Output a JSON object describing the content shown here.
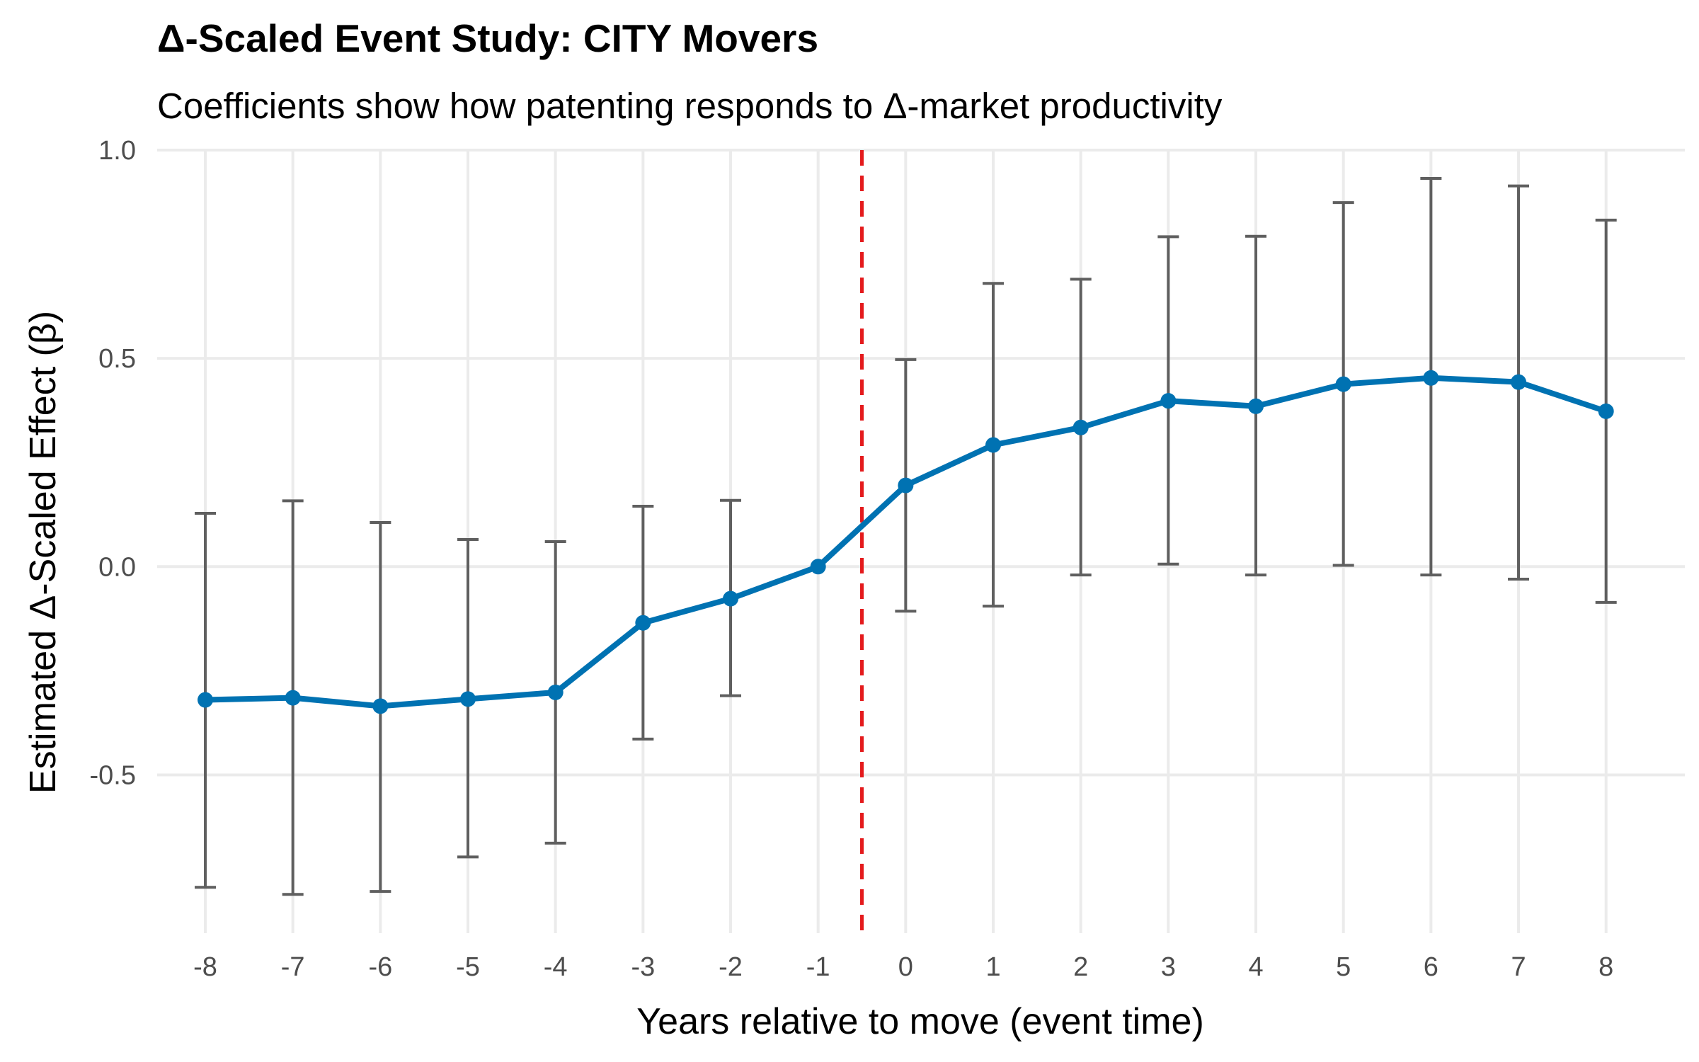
{
  "chart_data": {
    "type": "line",
    "title": "Δ-Scaled Event Study: CITY Movers",
    "subtitle": "Coefficients show how patenting responds to Δ-market productivity",
    "xlabel": "Years relative to move (event time)",
    "ylabel": "Estimated Δ-Scaled Effect (β)",
    "x": [
      -8,
      -7,
      -6,
      -5,
      -4,
      -3,
      -2,
      -1,
      0,
      1,
      2,
      3,
      4,
      5,
      6,
      7,
      8
    ],
    "x_tick_labels": [
      "-8",
      "-7",
      "-6",
      "-5",
      "-4",
      "-3",
      "-2",
      "-1",
      "0",
      "1",
      "2",
      "3",
      "4",
      "5",
      "6",
      "7",
      "8"
    ],
    "y_ticks": [
      -0.5,
      0.0,
      0.5,
      1.0
    ],
    "y_tick_labels": [
      "-0.5",
      "0.0",
      "0.5",
      "1.0"
    ],
    "xlim": [
      -8.55,
      8.9
    ],
    "ylim": [
      -0.88,
      1.0
    ],
    "series": [
      {
        "values": [
          -0.32,
          -0.315,
          -0.335,
          -0.318,
          -0.302,
          -0.135,
          -0.077,
          0.0,
          0.195,
          0.292,
          0.334,
          0.398,
          0.385,
          0.438,
          0.453,
          0.443,
          0.373
        ],
        "ci_lower": [
          -0.77,
          -0.787,
          -0.78,
          -0.697,
          -0.664,
          -0.414,
          -0.31,
          null,
          -0.107,
          -0.095,
          -0.02,
          0.006,
          -0.02,
          0.003,
          -0.02,
          -0.03,
          -0.086
        ],
        "ci_upper": [
          0.128,
          0.158,
          0.106,
          0.065,
          0.06,
          0.145,
          0.159,
          null,
          0.497,
          0.68,
          0.69,
          0.792,
          0.793,
          0.874,
          0.932,
          0.914,
          0.832
        ]
      }
    ],
    "reference_line": {
      "x": -0.5,
      "style": "dashed"
    },
    "grid": true,
    "colors": {
      "line": "#0072B2",
      "error_bars": "#5f5f5f",
      "reference_line": "#e41a1c",
      "grid": "#ebebeb"
    }
  }
}
